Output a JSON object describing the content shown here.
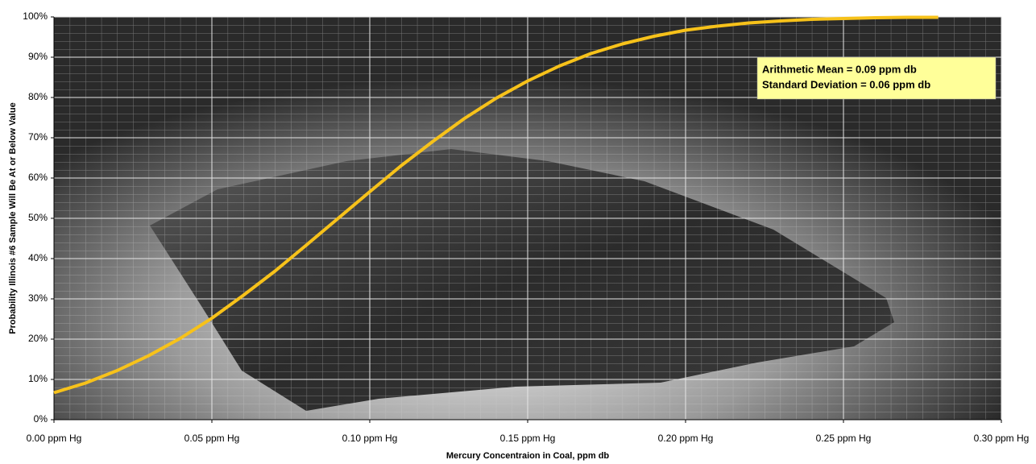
{
  "chart_data": {
    "type": "line",
    "x_label": "Mercury Concentraion in Coal, ppm db",
    "y_label": "Probability Illinois #6 Sample Will Be At or Below Value",
    "annotations": [
      "Arithmetic Mean = 0.09 ppm db",
      "Standard Deviation = 0.06 ppm db"
    ],
    "x": [
      0,
      0.01,
      0.02,
      0.03,
      0.04,
      0.05,
      0.06,
      0.07,
      0.08,
      0.09,
      0.1,
      0.11,
      0.12,
      0.13,
      0.14,
      0.15,
      0.16,
      0.17,
      0.18,
      0.19,
      0.2,
      0.21,
      0.22,
      0.23,
      0.24,
      0.25,
      0.26,
      0.27,
      0.28
    ],
    "series": [
      {
        "color": "#f7c21a",
        "values": [
          6.7,
          9.1,
          12.2,
          15.9,
          20.2,
          25.2,
          30.9,
          36.9,
          43.4,
          50,
          56.6,
          63.1,
          69.1,
          74.8,
          79.8,
          84.1,
          87.8,
          90.9,
          93.3,
          95.2,
          96.7,
          97.7,
          98.5,
          99.0,
          99.4,
          99.6,
          99.8,
          99.9,
          99.9
        ]
      }
    ],
    "xlim": [
      0,
      0.3
    ],
    "ylim": [
      0,
      100
    ],
    "xticks": [
      {
        "value": 0,
        "label": "0.00 ppm Hg"
      },
      {
        "value": 0.05,
        "label": "0.05 ppm Hg"
      },
      {
        "value": 0.1,
        "label": "0.10 ppm Hg"
      },
      {
        "value": 0.15,
        "label": "0.15 ppm Hg"
      },
      {
        "value": 0.2,
        "label": "0.20 ppm Hg"
      },
      {
        "value": 0.25,
        "label": "0.25 ppm Hg"
      },
      {
        "value": 0.3,
        "label": "0.30 ppm Hg"
      }
    ],
    "yticks": [
      {
        "value": 0,
        "label": "0%"
      },
      {
        "value": 10,
        "label": "10%"
      },
      {
        "value": 20,
        "label": "20%"
      },
      {
        "value": 30,
        "label": "30%"
      },
      {
        "value": 40,
        "label": "40%"
      },
      {
        "value": 50,
        "label": "50%"
      },
      {
        "value": 60,
        "label": "60%"
      },
      {
        "value": 70,
        "label": "70%"
      },
      {
        "value": 80,
        "label": "80%"
      },
      {
        "value": 90,
        "label": "90%"
      },
      {
        "value": 100,
        "label": "100%"
      }
    ],
    "grid": true
  }
}
